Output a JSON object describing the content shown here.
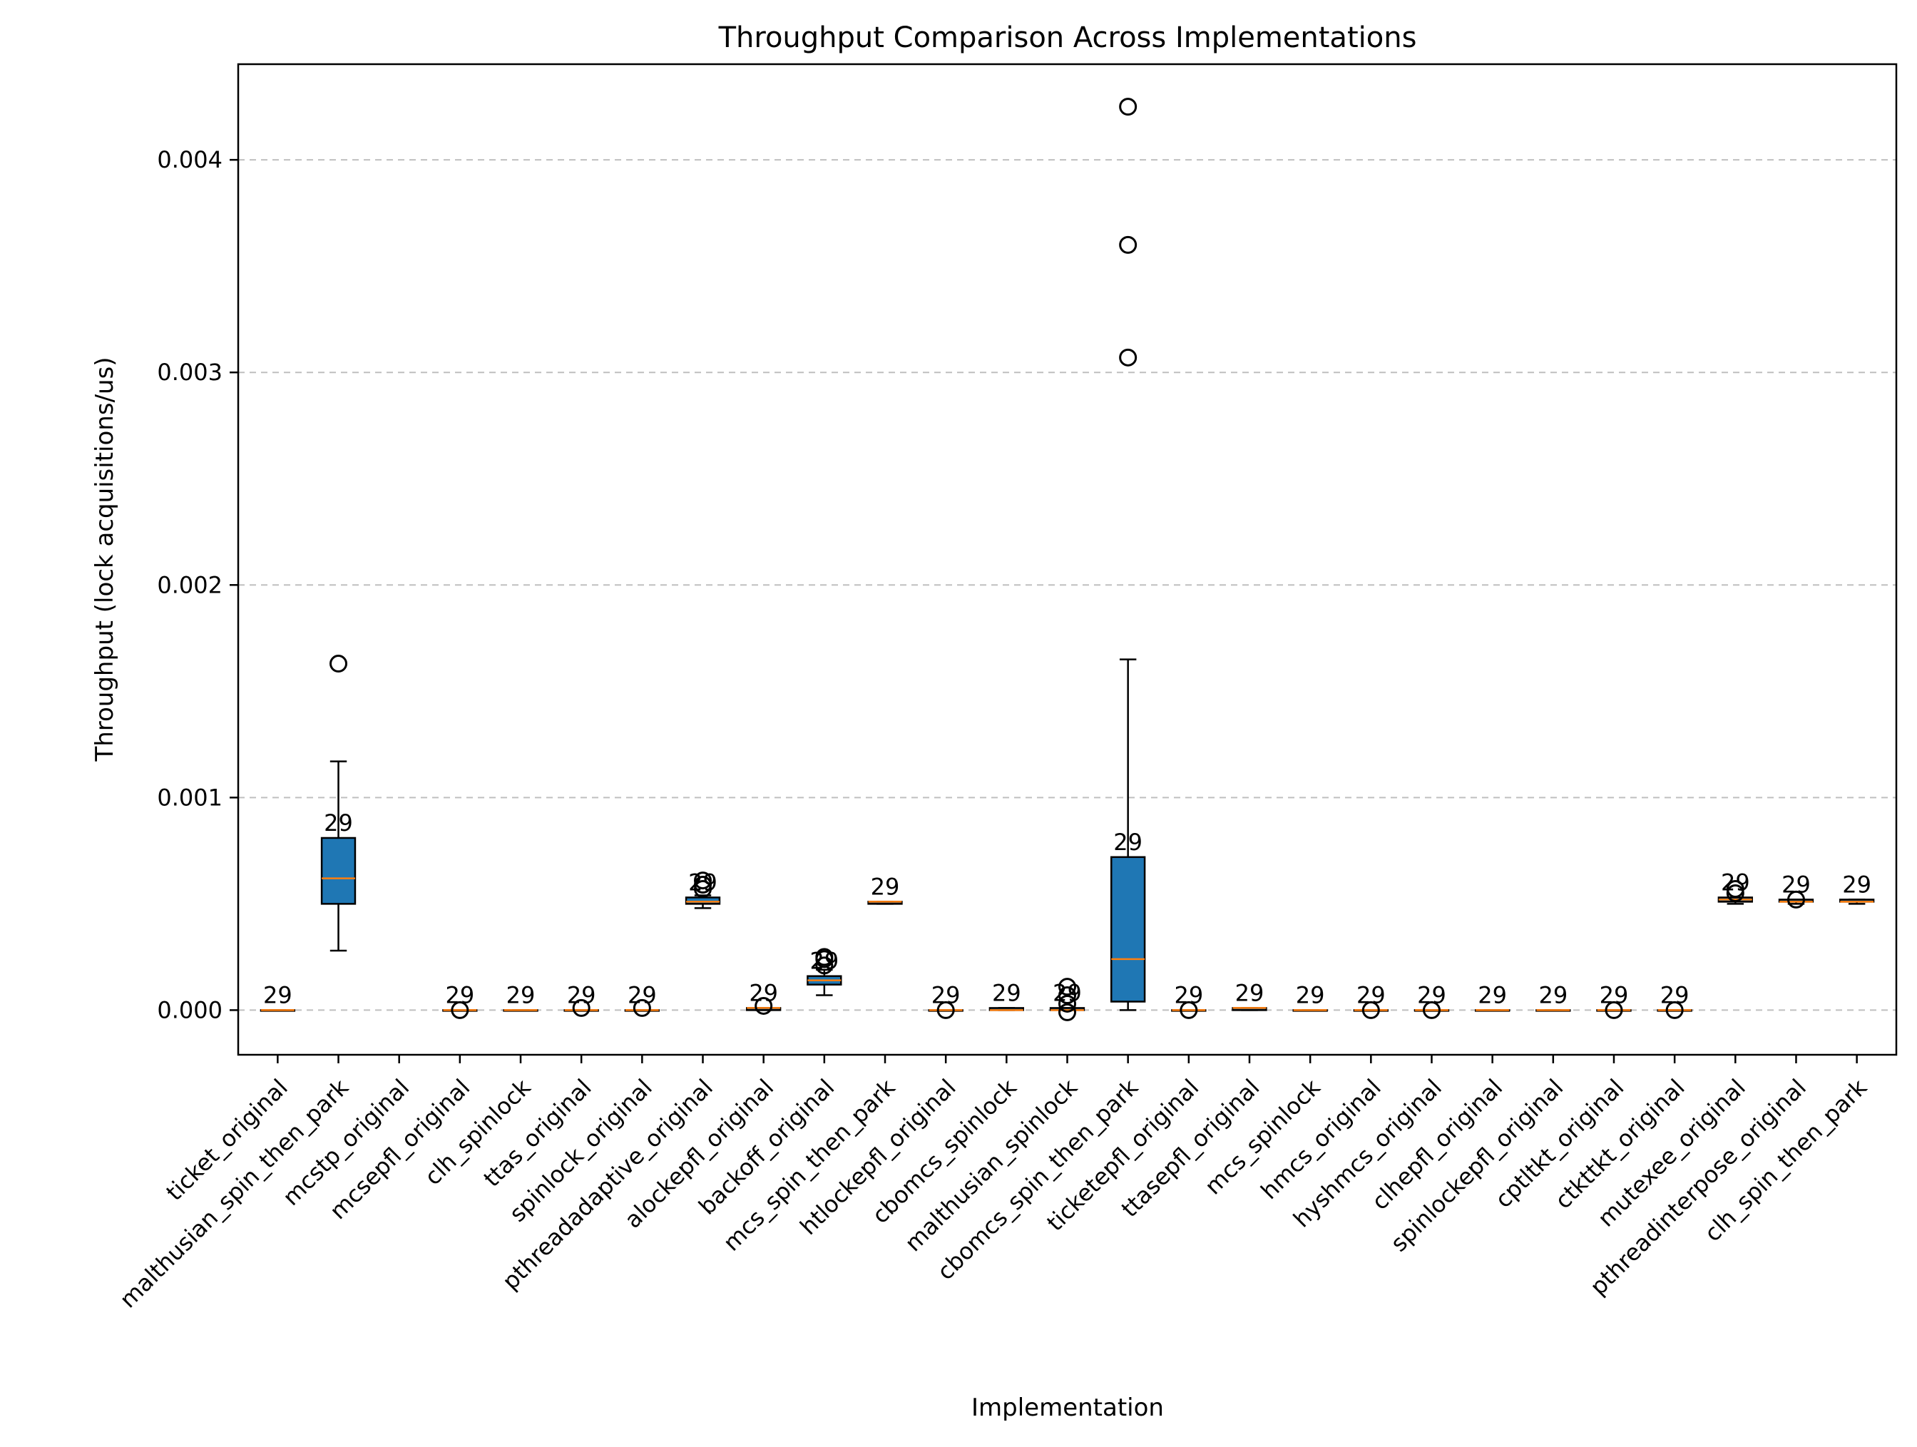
{
  "chart_data": {
    "type": "box",
    "title": "Throughput Comparison Across Implementations",
    "xlabel": "Implementation",
    "ylabel": "Throughput (lock acquisitions/us)",
    "ylim": [
      -0.00021,
      0.00445
    ],
    "yticks": [
      0.0,
      0.001,
      0.002,
      0.003,
      0.004
    ],
    "ytick_labels": [
      "0.000",
      "0.001",
      "0.002",
      "0.003",
      "0.004"
    ],
    "grid": "y-dashed",
    "box_color": "#1f77b4",
    "median_color": "#ff7f0e",
    "categories": [
      "ticket_original",
      "malthusian_spin_then_park",
      "mcstp_original",
      "mcsepfl_original",
      "clh_spinlock",
      "ttas_original",
      "spinlock_original",
      "pthreadadaptive_original",
      "alockepfl_original",
      "backoff_original",
      "mcs_spin_then_park",
      "htlockepfl_original",
      "cbomcs_spinlock",
      "malthusian_spinlock",
      "cbomcs_spin_then_park",
      "ticketepfl_original",
      "ttasepfl_original",
      "mcs_spinlock",
      "hmcs_original",
      "hyshmcs_original",
      "clhepfl_original",
      "spinlockepfl_original",
      "cptltkt_original",
      "ctkttkt_original",
      "mutexee_original",
      "pthreadinterpose_original",
      "clh_spin_then_park"
    ],
    "boxes": [
      {
        "whislo": 0.0,
        "q1": 0.0,
        "med": 0.0,
        "q3": 0.0,
        "whishi": 0.0,
        "fliers": [],
        "n": "29"
      },
      {
        "whislo": 0.00028,
        "q1": 0.0005,
        "med": 0.00062,
        "q3": 0.00081,
        "whishi": 0.00117,
        "fliers": [
          0.00163
        ],
        "n": "29"
      },
      null,
      {
        "whislo": 0.0,
        "q1": 0.0,
        "med": 0.0,
        "q3": 0.0,
        "whishi": 0.0,
        "fliers": [
          0.0
        ],
        "n": "29"
      },
      {
        "whislo": 0.0,
        "q1": 0.0,
        "med": 0.0,
        "q3": 0.0,
        "whishi": 0.0,
        "fliers": [],
        "n": "29"
      },
      {
        "whislo": 0.0,
        "q1": 0.0,
        "med": 0.0,
        "q3": 0.0,
        "whishi": 0.0,
        "fliers": [
          1e-05
        ],
        "n": "29"
      },
      {
        "whislo": 0.0,
        "q1": 0.0,
        "med": 0.0,
        "q3": 0.0,
        "whishi": 0.0,
        "fliers": [
          1e-05
        ],
        "n": "29"
      },
      {
        "whislo": 0.00048,
        "q1": 0.0005,
        "med": 0.00051,
        "q3": 0.00053,
        "whishi": 0.00054,
        "fliers": [
          0.00057,
          0.00059,
          0.00061
        ],
        "n": "29"
      },
      {
        "whislo": 0.0,
        "q1": 0.0,
        "med": 1e-05,
        "q3": 1e-05,
        "whishi": 1e-05,
        "fliers": [
          2e-05
        ],
        "n": "29"
      },
      {
        "whislo": 7e-05,
        "q1": 0.00012,
        "med": 0.00014,
        "q3": 0.00016,
        "whishi": 0.00019,
        "fliers": [
          0.00021,
          0.00024,
          0.00025
        ],
        "n": "29"
      },
      {
        "whislo": 0.0005,
        "q1": 0.0005,
        "med": 0.00051,
        "q3": 0.00051,
        "whishi": 0.00051,
        "fliers": [],
        "n": "29"
      },
      {
        "whislo": 0.0,
        "q1": 0.0,
        "med": 0.0,
        "q3": 0.0,
        "whishi": 0.0,
        "fliers": [
          0.0
        ],
        "n": "29"
      },
      {
        "whislo": 0.0,
        "q1": 0.0,
        "med": 0.0,
        "q3": 1e-05,
        "whishi": 1e-05,
        "fliers": [],
        "n": "29"
      },
      {
        "whislo": 0.0,
        "q1": 0.0,
        "med": 0.0,
        "q3": 1e-05,
        "whishi": 1e-05,
        "fliers": [
          -1e-05,
          3e-05,
          7e-05,
          0.00011
        ],
        "n": "29"
      },
      {
        "whislo": 0.0,
        "q1": 4e-05,
        "med": 0.00024,
        "q3": 0.00072,
        "whishi": 0.00165,
        "fliers": [
          0.00307,
          0.0036,
          0.00425
        ],
        "n": "29"
      },
      {
        "whislo": 0.0,
        "q1": 0.0,
        "med": 0.0,
        "q3": 0.0,
        "whishi": 0.0,
        "fliers": [
          0.0
        ],
        "n": "29"
      },
      {
        "whislo": 0.0,
        "q1": 0.0,
        "med": 1e-05,
        "q3": 1e-05,
        "whishi": 1e-05,
        "fliers": [],
        "n": "29"
      },
      {
        "whislo": 0.0,
        "q1": 0.0,
        "med": 0.0,
        "q3": 0.0,
        "whishi": 0.0,
        "fliers": [],
        "n": "29"
      },
      {
        "whislo": 0.0,
        "q1": 0.0,
        "med": 0.0,
        "q3": 0.0,
        "whishi": 0.0,
        "fliers": [
          0.0
        ],
        "n": "29"
      },
      {
        "whislo": 0.0,
        "q1": 0.0,
        "med": 0.0,
        "q3": 0.0,
        "whishi": 0.0,
        "fliers": [
          0.0
        ],
        "n": "29"
      },
      {
        "whislo": 0.0,
        "q1": 0.0,
        "med": 0.0,
        "q3": 0.0,
        "whishi": 0.0,
        "fliers": [],
        "n": "29"
      },
      {
        "whislo": 0.0,
        "q1": 0.0,
        "med": 0.0,
        "q3": 0.0,
        "whishi": 0.0,
        "fliers": [],
        "n": "29"
      },
      {
        "whislo": 0.0,
        "q1": 0.0,
        "med": 0.0,
        "q3": 0.0,
        "whishi": 0.0,
        "fliers": [
          0.0
        ],
        "n": "29"
      },
      {
        "whislo": 0.0,
        "q1": 0.0,
        "med": 0.0,
        "q3": 0.0,
        "whishi": 0.0,
        "fliers": [
          0.0
        ],
        "n": "29"
      },
      {
        "whislo": 0.0005,
        "q1": 0.00051,
        "med": 0.00052,
        "q3": 0.00053,
        "whishi": 0.00053,
        "fliers": [
          0.00055,
          0.00057
        ],
        "n": "29"
      },
      {
        "whislo": 0.0005,
        "q1": 0.00051,
        "med": 0.00051,
        "q3": 0.00052,
        "whishi": 0.00052,
        "fliers": [
          0.00052
        ],
        "n": "29"
      },
      {
        "whislo": 0.0005,
        "q1": 0.00051,
        "med": 0.00051,
        "q3": 0.00052,
        "whishi": 0.00052,
        "fliers": [],
        "n": "29"
      }
    ]
  }
}
